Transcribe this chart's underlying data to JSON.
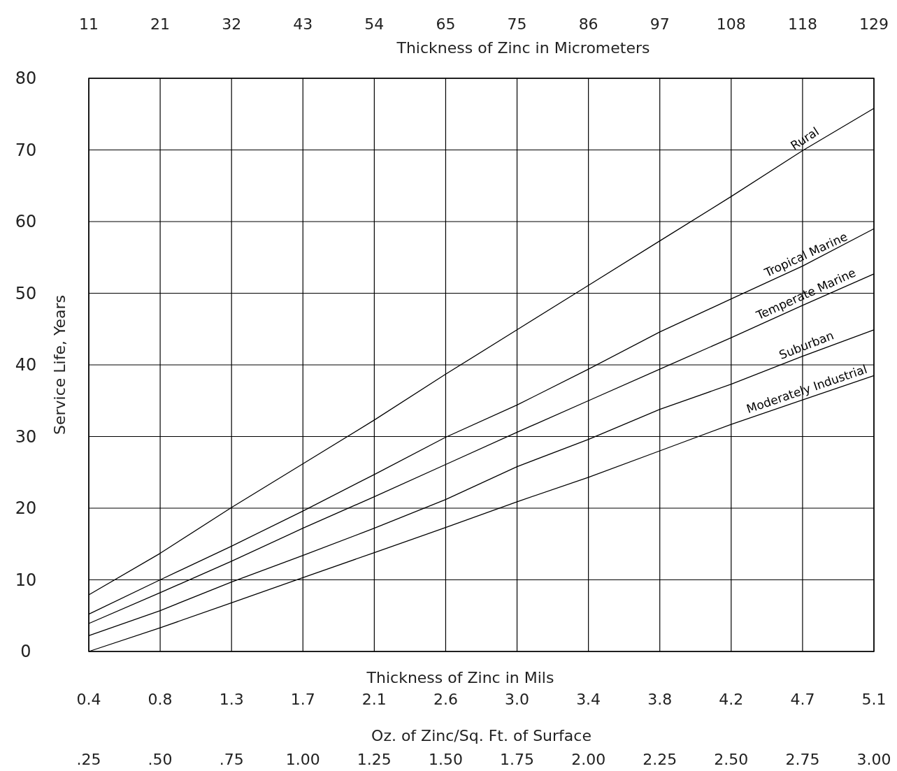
{
  "chart_data": {
    "type": "line",
    "xlabel": "Oz. of Zinc/Sq. Ft. of Surface",
    "ylabel": "Service Life, Years",
    "x2label": "Thickness of Zinc in Micrometers",
    "x": [
      0.25,
      0.5,
      0.75,
      1.0,
      1.25,
      1.5,
      1.75,
      2.0,
      2.25,
      2.5,
      2.75,
      3.0
    ],
    "series": [
      {
        "name": "Rural",
        "color": "#000000",
        "values": [
          7.9,
          13.7,
          20.1,
          26.2,
          32.3,
          38.7,
          44.9,
          51.1,
          57.3,
          63.5,
          69.9,
          75.8
        ]
      },
      {
        "name": "Tropical Marine",
        "color": "#000000",
        "values": [
          5.2,
          10.0,
          14.7,
          19.6,
          24.7,
          29.9,
          34.4,
          39.4,
          44.6,
          49.2,
          53.8,
          59.0
        ]
      },
      {
        "name": "Temperate Marine",
        "color": "#000000",
        "values": [
          3.9,
          8.2,
          12.6,
          17.2,
          21.6,
          26.1,
          30.6,
          35.0,
          39.4,
          43.8,
          48.3,
          52.7
        ]
      },
      {
        "name": "Suburban",
        "color": "#000000",
        "values": [
          2.2,
          5.7,
          9.7,
          13.4,
          17.2,
          21.2,
          25.8,
          29.6,
          33.8,
          37.3,
          41.2,
          44.9
        ]
      },
      {
        "name": "Moderately Industrial",
        "color": "#000000",
        "values": [
          0,
          3.3,
          6.8,
          10.3,
          13.8,
          17.3,
          20.9,
          24.3,
          28.0,
          31.7,
          35.1,
          38.5
        ]
      }
    ],
    "xlim": [
      0.25,
      3.0
    ],
    "xticks": [
      {
        "value": 0.25,
        "label": ".25"
      },
      {
        "value": 0.5,
        "label": ".50"
      },
      {
        "value": 0.75,
        "label": ".75"
      },
      {
        "value": 1.0,
        "label": "1.00"
      },
      {
        "value": 1.25,
        "label": "1.25"
      },
      {
        "value": 1.5,
        "label": "1.50"
      },
      {
        "value": 1.75,
        "label": "1.75"
      },
      {
        "value": 2.0,
        "label": "2.00"
      },
      {
        "value": 2.25,
        "label": "2.25"
      },
      {
        "value": 2.5,
        "label": "2.50"
      },
      {
        "value": 2.75,
        "label": "2.75"
      },
      {
        "value": 3.0,
        "label": "3.00"
      }
    ],
    "x2lim": [
      10.75,
      129
    ],
    "x2ticks": [
      {
        "value": 10.75,
        "label": "11"
      },
      {
        "value": 21.5,
        "label": "21"
      },
      {
        "value": 32.25,
        "label": "32"
      },
      {
        "value": 43,
        "label": "43"
      },
      {
        "value": 53.75,
        "label": "54"
      },
      {
        "value": 64.5,
        "label": "65"
      },
      {
        "value": 75.25,
        "label": "75"
      },
      {
        "value": 86,
        "label": "86"
      },
      {
        "value": 96.75,
        "label": "97"
      },
      {
        "value": 107.5,
        "label": "108"
      },
      {
        "value": 118.25,
        "label": "118"
      },
      {
        "value": 129,
        "label": "129"
      }
    ],
    "ylim": [
      0,
      80
    ],
    "yticks": [
      0,
      10,
      20,
      30,
      40,
      50,
      60,
      70,
      80
    ],
    "grid": true,
    "annotations": [
      "Thickness of Zinc in Mils",
      "0.4",
      "0.8",
      "1.3",
      "1.7",
      "2.1",
      "2.6",
      "3.0",
      "3.4",
      "3.8",
      "4.2",
      "4.7",
      "5.1"
    ]
  }
}
